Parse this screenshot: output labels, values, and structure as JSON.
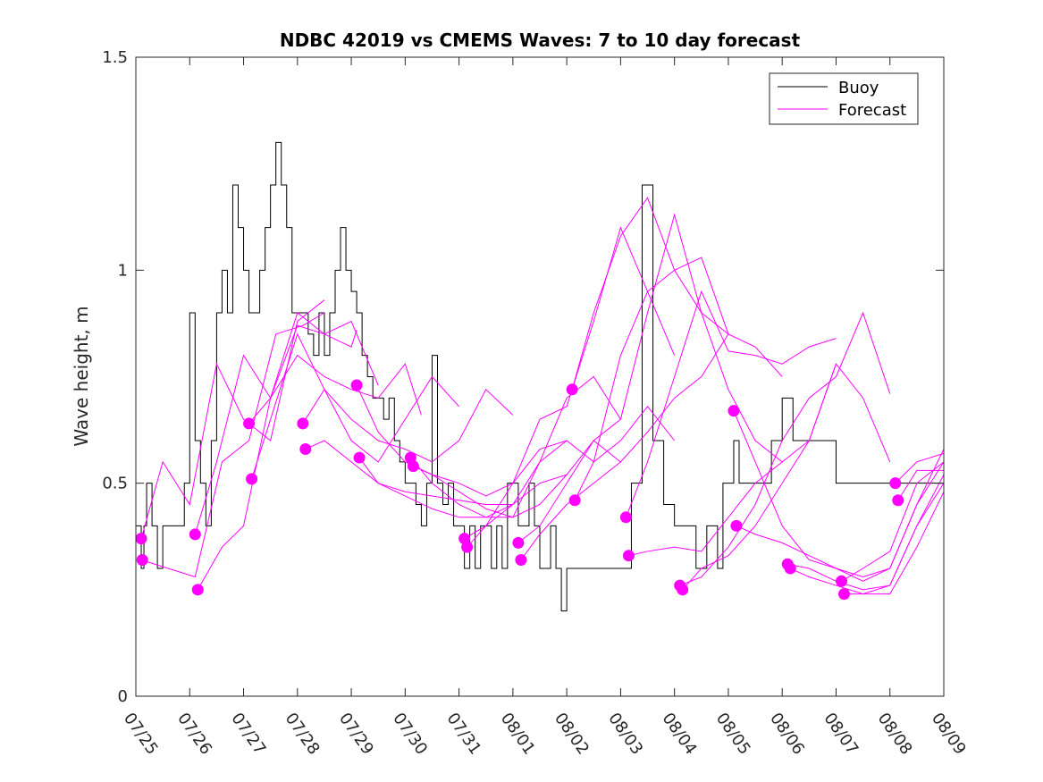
{
  "chart_data": {
    "type": "line",
    "title": "NDBC 42019 vs CMEMS Waves: 7 to 10 day forecast",
    "xlabel": "",
    "ylabel": "Wave height, m",
    "ylim": [
      0,
      1.5
    ],
    "yticks": [
      0,
      0.5,
      1,
      1.5
    ],
    "ytick_labels": [
      "0",
      "0.5",
      "1",
      "1.5"
    ],
    "xlim": [
      "07/25",
      "08/09"
    ],
    "xtick_labels": [
      "07/25",
      "07/26",
      "07/27",
      "07/28",
      "07/29",
      "07/30",
      "07/31",
      "08/01",
      "08/02",
      "08/03",
      "08/04",
      "08/05",
      "08/06",
      "08/07",
      "08/08",
      "08/09"
    ],
    "legend": {
      "placement": "top-right",
      "entries": [
        "Buoy",
        "Forecast"
      ]
    },
    "colors": {
      "buoy": "#000000",
      "forecast": "#ff00ff",
      "axes": "#262626"
    },
    "series": [
      {
        "name": "Buoy",
        "x": [
          0,
          0.1,
          0.15,
          0.2,
          0.3,
          0.4,
          0.5,
          0.6,
          0.7,
          0.8,
          0.9,
          1.0,
          1.1,
          1.2,
          1.3,
          1.4,
          1.5,
          1.6,
          1.7,
          1.8,
          1.9,
          2.0,
          2.1,
          2.2,
          2.3,
          2.4,
          2.5,
          2.6,
          2.7,
          2.8,
          2.9,
          3.0,
          3.1,
          3.2,
          3.3,
          3.4,
          3.5,
          3.6,
          3.7,
          3.8,
          3.9,
          4.0,
          4.1,
          4.2,
          4.3,
          4.4,
          4.5,
          4.6,
          4.7,
          4.8,
          4.9,
          5.0,
          5.1,
          5.2,
          5.3,
          5.4,
          5.5,
          5.6,
          5.7,
          5.8,
          5.9,
          6.0,
          6.1,
          6.2,
          6.3,
          6.4,
          6.5,
          6.6,
          6.7,
          6.8,
          6.9,
          7.0,
          7.1,
          7.2,
          7.3,
          7.4,
          7.5,
          7.6,
          7.7,
          7.8,
          7.9,
          8.0,
          8.2,
          8.4,
          8.6,
          8.8,
          9.0,
          9.2,
          9.4,
          9.6,
          9.8,
          10.0,
          10.2,
          10.4,
          10.6,
          10.8,
          10.9,
          11.0,
          11.1,
          11.2,
          11.4,
          11.6,
          11.8,
          12.0,
          12.2,
          12.4,
          12.6,
          12.8,
          13.0,
          13.2,
          13.4,
          13.6,
          13.8,
          14.0,
          14.2,
          14.4,
          14.6,
          14.8,
          15.0
        ],
        "y": [
          0.4,
          0.3,
          0.4,
          0.5,
          0.4,
          0.3,
          0.4,
          0.4,
          0.4,
          0.4,
          0.5,
          0.9,
          0.6,
          0.5,
          0.4,
          0.6,
          0.9,
          1.0,
          0.9,
          1.2,
          1.1,
          1.0,
          0.9,
          0.9,
          1.0,
          1.1,
          1.2,
          1.3,
          1.2,
          1.1,
          0.9,
          0.9,
          0.9,
          0.85,
          0.8,
          0.9,
          0.8,
          0.9,
          1.0,
          1.1,
          1.0,
          0.95,
          0.9,
          0.8,
          0.75,
          0.7,
          0.7,
          0.65,
          0.7,
          0.6,
          0.55,
          0.5,
          0.5,
          0.45,
          0.4,
          0.5,
          0.8,
          0.5,
          0.45,
          0.5,
          0.4,
          0.4,
          0.3,
          0.4,
          0.3,
          0.4,
          0.4,
          0.3,
          0.4,
          0.3,
          0.5,
          0.5,
          0.4,
          0.4,
          0.5,
          0.4,
          0.3,
          0.3,
          0.4,
          0.3,
          0.2,
          0.3,
          0.3,
          0.3,
          0.3,
          0.3,
          0.3,
          0.5,
          1.2,
          0.6,
          0.45,
          0.4,
          0.4,
          0.3,
          0.4,
          0.3,
          0.5,
          0.5,
          0.6,
          0.5,
          0.5,
          0.5,
          0.6,
          0.7,
          0.6,
          0.6,
          0.6,
          0.6,
          0.5,
          0.5,
          0.5,
          0.5,
          0.5,
          0.5,
          0.5,
          0.5,
          0.5,
          0.5,
          0.5
        ]
      },
      {
        "name": "Forecast",
        "x": [
          0.1,
          0.5,
          1.0,
          1.5,
          2.0,
          2.5,
          3.0,
          3.5
        ],
        "y": [
          0.37,
          0.55,
          0.45,
          0.78,
          0.65,
          0.6,
          0.88,
          0.93
        ]
      },
      {
        "name": "Forecast",
        "x": [
          0.1,
          0.6,
          1.1,
          1.6,
          2.1,
          2.6,
          3.1,
          3.5
        ],
        "y": [
          0.32,
          0.3,
          0.28,
          0.55,
          0.6,
          0.85,
          0.87,
          0.9
        ]
      },
      {
        "name": "Forecast",
        "x": [
          1.1,
          1.5,
          2.0,
          2.5,
          3.0,
          3.5,
          4.0,
          4.1
        ],
        "y": [
          0.38,
          0.55,
          0.8,
          0.7,
          0.87,
          0.85,
          0.82,
          0.86
        ]
      },
      {
        "name": "Forecast",
        "x": [
          1.15,
          1.6,
          2.0,
          2.5,
          3.0,
          3.5,
          4.0,
          4.5
        ],
        "y": [
          0.25,
          0.35,
          0.4,
          0.7,
          0.9,
          0.85,
          0.88,
          0.73
        ]
      },
      {
        "name": "Forecast",
        "x": [
          2.1,
          2.5,
          3.0,
          3.5,
          4.0,
          4.5,
          5.0,
          5.3
        ],
        "y": [
          0.64,
          0.7,
          0.8,
          0.75,
          0.72,
          0.7,
          0.78,
          0.66
        ]
      },
      {
        "name": "Forecast",
        "x": [
          2.15,
          2.5,
          3.0,
          3.5,
          4.0,
          4.5,
          5.0,
          5.5,
          6.0
        ],
        "y": [
          0.51,
          0.65,
          0.85,
          0.72,
          0.6,
          0.55,
          0.65,
          0.75,
          0.68
        ]
      },
      {
        "name": "Forecast",
        "x": [
          3.1,
          3.5,
          4.0,
          4.5,
          5.0,
          5.5,
          6.0,
          6.5,
          7.0
        ],
        "y": [
          0.64,
          0.72,
          0.65,
          0.6,
          0.58,
          0.55,
          0.6,
          0.72,
          0.66
        ]
      },
      {
        "name": "Forecast",
        "x": [
          3.15,
          3.5,
          4.0,
          4.5,
          5.0,
          5.5,
          6.0,
          6.5,
          7.0
        ],
        "y": [
          0.58,
          0.6,
          0.55,
          0.5,
          0.48,
          0.47,
          0.46,
          0.45,
          0.45
        ]
      },
      {
        "name": "Forecast",
        "x": [
          4.1,
          4.5,
          5.0,
          5.5,
          6.0,
          6.5,
          7.0,
          7.5,
          8.0
        ],
        "y": [
          0.73,
          0.62,
          0.55,
          0.52,
          0.5,
          0.47,
          0.5,
          0.58,
          0.6
        ]
      },
      {
        "name": "Forecast",
        "x": [
          4.15,
          4.5,
          5.0,
          5.5,
          6.0,
          6.5,
          7.0,
          7.5,
          8.0
        ],
        "y": [
          0.56,
          0.5,
          0.47,
          0.44,
          0.42,
          0.42,
          0.45,
          0.5,
          0.52
        ]
      },
      {
        "name": "Forecast",
        "x": [
          5.1,
          5.5,
          6.0,
          6.5,
          7.0,
          7.5,
          8.0,
          8.5,
          9.0
        ],
        "y": [
          0.56,
          0.5,
          0.45,
          0.42,
          0.42,
          0.55,
          0.7,
          0.75,
          0.65
        ]
      },
      {
        "name": "Forecast",
        "x": [
          5.15,
          5.5,
          6.0,
          6.5,
          7.0,
          7.5,
          8.0,
          8.5,
          9.0
        ],
        "y": [
          0.54,
          0.52,
          0.48,
          0.44,
          0.42,
          0.45,
          0.52,
          0.6,
          0.55
        ]
      },
      {
        "name": "Forecast",
        "x": [
          6.1,
          6.5,
          7.0,
          7.5,
          8.0,
          8.5,
          9.0,
          9.5,
          10.0
        ],
        "y": [
          0.37,
          0.4,
          0.5,
          0.65,
          0.68,
          0.88,
          1.1,
          0.95,
          0.8
        ]
      },
      {
        "name": "Forecast",
        "x": [
          6.15,
          6.5,
          7.0,
          7.5,
          8.0,
          8.5,
          9.0,
          9.5,
          10.0
        ],
        "y": [
          0.35,
          0.4,
          0.45,
          0.55,
          0.6,
          0.55,
          0.6,
          0.68,
          0.6
        ]
      },
      {
        "name": "Forecast",
        "x": [
          7.1,
          7.5,
          8.0,
          8.5,
          9.0,
          9.5,
          10.0,
          10.5,
          11.0
        ],
        "y": [
          0.36,
          0.4,
          0.5,
          0.6,
          0.65,
          0.9,
          1.13,
          0.9,
          0.85
        ]
      },
      {
        "name": "Forecast",
        "x": [
          7.15,
          7.5,
          8.0,
          8.5,
          9.0,
          9.5,
          10.0,
          10.5,
          11.0
        ],
        "y": [
          0.32,
          0.38,
          0.45,
          0.5,
          0.55,
          0.62,
          0.7,
          0.75,
          0.85
        ]
      },
      {
        "name": "Forecast",
        "x": [
          8.1,
          8.5,
          9.0,
          9.5,
          10.0,
          10.5,
          11.0,
          11.5,
          12.0
        ],
        "y": [
          0.72,
          0.9,
          1.08,
          1.17,
          1.0,
          1.03,
          0.85,
          0.82,
          0.75
        ]
      },
      {
        "name": "Forecast",
        "x": [
          8.15,
          8.5,
          9.0,
          9.5,
          10.0,
          10.5,
          11.0,
          11.5,
          12.0
        ],
        "y": [
          0.46,
          0.55,
          0.8,
          0.95,
          1.0,
          0.9,
          0.72,
          0.6,
          0.55
        ]
      },
      {
        "name": "Forecast",
        "x": [
          9.1,
          9.5,
          10.0,
          10.5,
          11.0,
          11.5,
          12.0,
          12.5,
          13.0
        ],
        "y": [
          0.42,
          0.55,
          0.75,
          0.95,
          0.81,
          0.8,
          0.78,
          0.82,
          0.84
        ]
      },
      {
        "name": "Forecast",
        "x": [
          9.15,
          9.5,
          10.0,
          10.5,
          11.0,
          11.5,
          12.0,
          12.5,
          13.0
        ],
        "y": [
          0.33,
          0.34,
          0.35,
          0.34,
          0.42,
          0.5,
          0.55,
          0.6,
          0.78
        ]
      },
      {
        "name": "Forecast",
        "x": [
          10.1,
          10.5,
          11.0,
          11.5,
          12.0,
          12.5,
          13.0,
          13.5,
          14.0
        ],
        "y": [
          0.26,
          0.28,
          0.35,
          0.45,
          0.6,
          0.7,
          0.75,
          0.9,
          0.71
        ]
      },
      {
        "name": "Forecast",
        "x": [
          10.15,
          10.5,
          11.0,
          11.5,
          12.0,
          12.5,
          13.0,
          13.5,
          14.0
        ],
        "y": [
          0.25,
          0.3,
          0.33,
          0.4,
          0.5,
          0.6,
          0.78,
          0.7,
          0.55
        ]
      },
      {
        "name": "Forecast",
        "x": [
          11.1,
          11.5,
          12.0,
          12.5,
          13.0,
          13.5,
          14.0,
          14.5,
          15.0
        ],
        "y": [
          0.67,
          0.55,
          0.4,
          0.32,
          0.3,
          0.27,
          0.3,
          0.45,
          0.58
        ]
      },
      {
        "name": "Forecast",
        "x": [
          11.15,
          11.5,
          12.0,
          12.5,
          13.0,
          13.5,
          14.0,
          14.5,
          15.0
        ],
        "y": [
          0.4,
          0.38,
          0.36,
          0.33,
          0.3,
          0.28,
          0.3,
          0.45,
          0.55
        ]
      },
      {
        "name": "Forecast",
        "x": [
          12.1,
          12.5,
          13.0,
          13.5,
          14.0,
          14.5,
          15.0
        ],
        "y": [
          0.31,
          0.3,
          0.27,
          0.25,
          0.26,
          0.4,
          0.52
        ]
      },
      {
        "name": "Forecast",
        "x": [
          12.15,
          12.5,
          13.0,
          13.5,
          14.0,
          14.5,
          15.0
        ],
        "y": [
          0.3,
          0.28,
          0.26,
          0.24,
          0.24,
          0.35,
          0.48
        ]
      },
      {
        "name": "Forecast",
        "x": [
          13.1,
          13.5,
          14.0,
          14.5,
          15.0
        ],
        "y": [
          0.27,
          0.3,
          0.34,
          0.5,
          0.55
        ]
      },
      {
        "name": "Forecast",
        "x": [
          13.15,
          13.5,
          14.0,
          14.5,
          15.0
        ],
        "y": [
          0.24,
          0.24,
          0.26,
          0.4,
          0.5
        ]
      },
      {
        "name": "Forecast",
        "x": [
          14.1,
          14.5,
          15.0
        ],
        "y": [
          0.5,
          0.55,
          0.57
        ]
      },
      {
        "name": "Forecast",
        "x": [
          14.15,
          14.5,
          15.0
        ],
        "y": [
          0.46,
          0.53,
          0.53
        ]
      }
    ],
    "markers": {
      "x": [
        0.1,
        0.12,
        1.1,
        1.15,
        2.1,
        2.15,
        3.1,
        3.15,
        4.1,
        4.15,
        5.1,
        5.15,
        6.1,
        6.15,
        7.1,
        7.15,
        8.1,
        8.15,
        9.1,
        9.15,
        10.1,
        10.15,
        11.1,
        11.15,
        12.1,
        12.15,
        13.1,
        13.15,
        14.1,
        14.15
      ],
      "y": [
        0.37,
        0.32,
        0.38,
        0.25,
        0.64,
        0.51,
        0.64,
        0.58,
        0.73,
        0.56,
        0.56,
        0.54,
        0.37,
        0.35,
        0.36,
        0.32,
        0.72,
        0.46,
        0.42,
        0.33,
        0.26,
        0.25,
        0.67,
        0.4,
        0.31,
        0.3,
        0.27,
        0.24,
        0.5,
        0.46
      ]
    }
  }
}
